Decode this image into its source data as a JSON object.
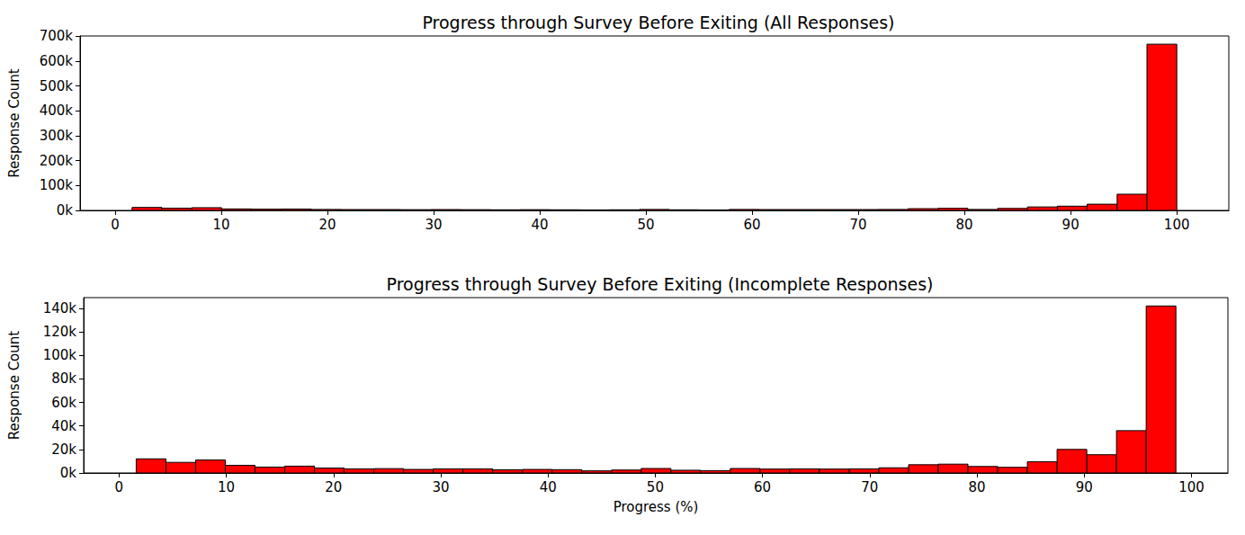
{
  "chart_data": [
    {
      "type": "histogram",
      "title": "Progress through Survey Before Exiting (All Responses)",
      "ylabel": "Response Count",
      "color": "#ff0000",
      "grid": false,
      "bins": [
        1.6,
        4.41,
        7.22,
        10.03,
        12.85,
        15.66,
        18.47,
        21.28,
        24.09,
        26.9,
        29.71,
        32.53,
        35.34,
        38.15,
        40.96,
        43.77,
        46.58,
        49.39,
        52.21,
        55.02,
        57.83,
        60.64,
        63.45,
        66.26,
        69.07,
        71.88,
        74.7,
        77.51,
        80.32,
        83.13,
        85.94,
        88.75,
        91.56,
        94.38,
        97.19,
        100
      ],
      "values": [
        12000,
        9000,
        11000,
        6000,
        5000,
        5500,
        4000,
        3500,
        3500,
        3000,
        3500,
        3000,
        2500,
        3000,
        2500,
        2000,
        2500,
        4000,
        2500,
        2000,
        4000,
        3500,
        3500,
        3500,
        3500,
        4000,
        7000,
        8500,
        4000,
        8000,
        14000,
        17000,
        25000,
        65000,
        668000
      ],
      "xlim": [
        -3.3,
        104.9
      ],
      "xticks": [
        0,
        10,
        20,
        30,
        40,
        50,
        60,
        70,
        80,
        90,
        100
      ],
      "ylim": [
        0,
        701000
      ],
      "yticks": [
        {
          "value": 0,
          "label": "0k"
        },
        {
          "value": 100000,
          "label": "100k"
        },
        {
          "value": 200000,
          "label": "200k"
        },
        {
          "value": 300000,
          "label": "300k"
        },
        {
          "value": 400000,
          "label": "400k"
        },
        {
          "value": 500000,
          "label": "500k"
        },
        {
          "value": 600000,
          "label": "600k"
        },
        {
          "value": 700000,
          "label": "700k"
        }
      ]
    },
    {
      "type": "histogram",
      "title": "Progress through Survey Before Exiting (Incomplete Responses)",
      "xlabel": "Progress (%)",
      "ylabel": "Response Count",
      "color": "#ff0000",
      "grid": false,
      "bins": [
        1.6,
        4.37,
        7.14,
        9.91,
        12.68,
        15.45,
        18.22,
        20.99,
        23.76,
        26.53,
        29.3,
        32.07,
        34.84,
        37.61,
        40.38,
        43.15,
        45.92,
        48.69,
        51.46,
        54.23,
        57.0,
        59.77,
        62.54,
        65.31,
        68.08,
        70.85,
        73.62,
        76.39,
        79.16,
        81.93,
        84.7,
        87.47,
        90.24,
        93.01,
        95.78,
        98.55
      ],
      "values": [
        12000,
        9000,
        11000,
        6500,
        5000,
        5800,
        4200,
        3500,
        3700,
        3000,
        3500,
        3500,
        2700,
        3000,
        2800,
        1800,
        2500,
        3800,
        2300,
        2000,
        3800,
        3300,
        3500,
        3300,
        3500,
        4400,
        7000,
        7500,
        5500,
        4800,
        9500,
        20000,
        15500,
        36000,
        142000
      ],
      "xlim": [
        -3.3,
        103.4
      ],
      "xticks": [
        0,
        10,
        20,
        30,
        40,
        50,
        60,
        70,
        80,
        90,
        100
      ],
      "ylim": [
        0,
        149100
      ],
      "yticks": [
        {
          "value": 0,
          "label": "0k"
        },
        {
          "value": 20000,
          "label": "20k"
        },
        {
          "value": 40000,
          "label": "40k"
        },
        {
          "value": 60000,
          "label": "60k"
        },
        {
          "value": 80000,
          "label": "80k"
        },
        {
          "value": 100000,
          "label": "100k"
        },
        {
          "value": 120000,
          "label": "120k"
        },
        {
          "value": 140000,
          "label": "140k"
        }
      ]
    }
  ]
}
